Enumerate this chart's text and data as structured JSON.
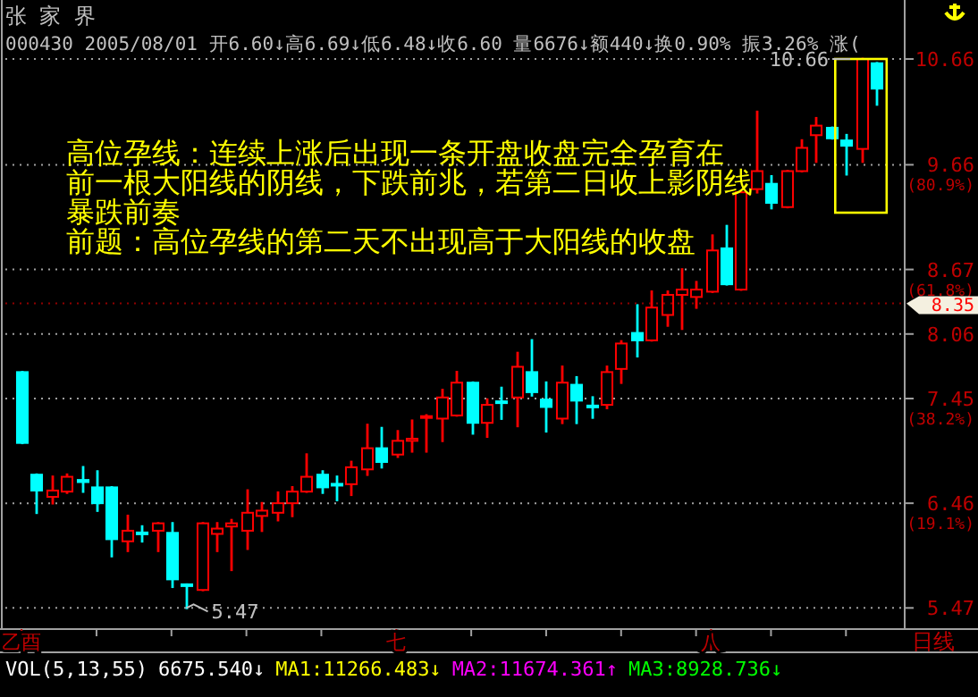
{
  "chart_data": {
    "type": "candlestick",
    "title": "张 家 界",
    "subtitle": "000430 2005/08/01 开6.60↓高6.69↓低6.48↓收6.60 量6676↓额440↓换0.90% 振3.26% 涨(",
    "categories": [
      "乙酉",
      null,
      null,
      null,
      null,
      null,
      null,
      null,
      null,
      null,
      null,
      null,
      null,
      null,
      null,
      null,
      null,
      null,
      null,
      null,
      null,
      null,
      null,
      null,
      null,
      "七",
      null,
      null,
      null,
      null,
      null,
      null,
      null,
      null,
      null,
      null,
      null,
      null,
      null,
      null,
      null,
      null,
      null,
      null,
      null,
      null,
      "八",
      null,
      null,
      null,
      null,
      null,
      null,
      null,
      null,
      null,
      null,
      null
    ],
    "ohlc": [
      [
        7.7,
        7.7,
        7.03,
        7.03
      ],
      [
        6.73,
        6.73,
        6.37,
        6.58
      ],
      [
        6.52,
        6.71,
        6.46,
        6.58
      ],
      [
        6.57,
        6.73,
        6.56,
        6.71
      ],
      [
        6.68,
        6.8,
        6.57,
        6.66
      ],
      [
        6.61,
        6.76,
        6.39,
        6.46
      ],
      [
        6.61,
        6.61,
        5.96,
        6.12
      ],
      [
        6.1,
        6.34,
        6.01,
        6.2
      ],
      [
        6.18,
        6.24,
        6.1,
        6.17
      ],
      [
        6.2,
        6.27,
        6.01,
        6.27
      ],
      [
        6.18,
        6.27,
        5.67,
        5.74
      ],
      [
        5.69,
        5.69,
        5.47,
        5.68
      ],
      [
        5.64,
        6.27,
        5.64,
        6.27
      ],
      [
        6.17,
        6.27,
        6.01,
        6.22
      ],
      [
        6.24,
        6.3,
        5.83,
        6.27
      ],
      [
        6.2,
        6.58,
        6.03,
        6.37
      ],
      [
        6.34,
        6.46,
        6.2,
        6.39
      ],
      [
        6.37,
        6.56,
        6.3,
        6.46
      ],
      [
        6.46,
        6.61,
        6.34,
        6.57
      ],
      [
        6.57,
        6.92,
        6.57,
        6.71
      ],
      [
        6.73,
        6.76,
        6.56,
        6.61
      ],
      [
        6.64,
        6.71,
        6.49,
        6.63
      ],
      [
        6.64,
        6.85,
        6.54,
        6.8
      ],
      [
        6.78,
        7.2,
        6.73,
        6.98
      ],
      [
        6.98,
        7.17,
        6.8,
        6.85
      ],
      [
        6.92,
        7.14,
        6.9,
        7.05
      ],
      [
        7.05,
        7.24,
        6.95,
        7.07
      ],
      [
        7.27,
        7.29,
        6.95,
        7.28
      ],
      [
        7.26,
        7.53,
        7.05,
        7.46
      ],
      [
        7.29,
        7.7,
        7.29,
        7.6
      ],
      [
        7.6,
        7.6,
        7.12,
        7.22
      ],
      [
        7.22,
        7.44,
        7.09,
        7.39
      ],
      [
        7.42,
        7.55,
        7.26,
        7.41
      ],
      [
        7.46,
        7.88,
        7.19,
        7.75
      ],
      [
        7.7,
        8.0,
        7.48,
        7.51
      ],
      [
        7.44,
        7.6,
        7.14,
        7.37
      ],
      [
        7.26,
        7.75,
        7.22,
        7.6
      ],
      [
        7.58,
        7.65,
        7.22,
        7.43
      ],
      [
        7.38,
        7.46,
        7.27,
        7.37
      ],
      [
        7.39,
        7.75,
        7.36,
        7.7
      ],
      [
        7.73,
        7.99,
        7.6,
        7.97
      ],
      [
        8.07,
        8.33,
        7.85,
        8.0
      ],
      [
        8.0,
        8.46,
        8.0,
        8.31
      ],
      [
        8.24,
        8.46,
        8.14,
        8.43
      ],
      [
        8.43,
        8.67,
        8.11,
        8.48
      ],
      [
        8.41,
        8.55,
        8.31,
        8.48
      ],
      [
        8.46,
        8.99,
        8.46,
        8.85
      ],
      [
        8.87,
        9.08,
        8.53,
        8.53
      ],
      [
        8.48,
        9.4,
        8.48,
        9.4
      ],
      [
        9.43,
        10.16,
        9.4,
        9.6
      ],
      [
        9.48,
        9.55,
        9.25,
        9.3
      ],
      [
        9.26,
        9.6,
        9.26,
        9.6
      ],
      [
        9.6,
        9.89,
        9.6,
        9.82
      ],
      [
        9.94,
        10.1,
        9.69,
        10.03
      ],
      [
        10.01,
        10.01,
        9.91,
        9.91
      ],
      [
        9.89,
        9.94,
        9.57,
        9.84
      ],
      [
        9.81,
        10.66,
        9.69,
        10.66
      ],
      [
        10.62,
        10.62,
        10.23,
        10.38
      ]
    ],
    "ylim": [
      5.27,
      10.88
    ],
    "yticks": [
      10.66,
      {
        "value": 9.66,
        "label": "9.66\n(80.9%)"
      },
      {
        "value": 8.67,
        "label": "8.67\n(61.8%)"
      },
      8.06,
      {
        "value": 7.45,
        "label": "7.45\n(38.2%)"
      },
      {
        "value": 6.46,
        "label": "6.46\n(19.1%)"
      },
      5.47
    ],
    "grid": "y",
    "ref_lines": [
      {
        "axis": "y",
        "value": 8.35,
        "label": "8.35"
      }
    ],
    "annotations": [
      "高位孕线：连续上涨后出现一条开盘收盘完全孕育在",
      "前一根大阳线的阴线，下跌前兆，若第二日收上影阴线",
      "暴跌前奏",
      "前题：高位孕线的第二天不出现高于大阳线的收盘",
      "日线",
      "VOL(5,13,55)",
      "6675.540↓",
      "MA1:11266.483↓",
      "MA2:11674.361↑",
      "MA3:8928.736↓",
      "10.66",
      "5.47"
    ]
  }
}
